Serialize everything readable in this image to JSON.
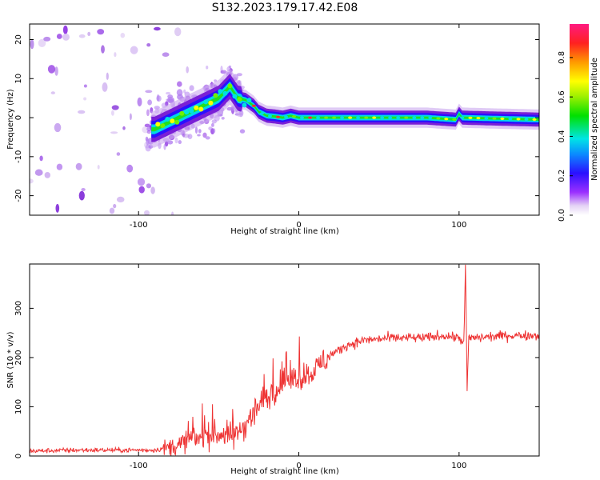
{
  "title": "S132.2023.179.17.42.E08",
  "chart_data": [
    {
      "type": "heatmap",
      "xlabel": "Height of straight line (km)",
      "ylabel": "Frequency (Hz)",
      "xlim": [
        -168,
        150
      ],
      "ylim": [
        -25,
        24
      ],
      "xticks": [
        -100,
        0,
        100
      ],
      "yticks": [
        -20,
        -10,
        0,
        10,
        20
      ],
      "colorbar": {
        "label": "Normalized spectral amplitude",
        "range": [
          0,
          0.97
        ],
        "ticks": [
          "0.0",
          "0.2",
          "0.4",
          "0.6",
          "0.8"
        ]
      },
      "ridge": {
        "x": [
          -90,
          -80,
          -70,
          -60,
          -50,
          -43,
          -38,
          -33,
          -28,
          -25,
          -20,
          -15,
          -10,
          -5,
          0,
          10,
          30,
          50,
          80,
          98,
          100,
          102,
          120,
          150
        ],
        "y": [
          -3,
          -1,
          1,
          3,
          5,
          8,
          5,
          4.5,
          3,
          1.5,
          0.5,
          0.3,
          0,
          0.5,
          0,
          0,
          0,
          0,
          0,
          -0.5,
          1,
          0,
          -0.2,
          -0.5
        ]
      }
    },
    {
      "type": "line",
      "xlabel": "Height of straight line (km)",
      "ylabel": "SNR (10 * v/v)",
      "xlim": [
        -168,
        150
      ],
      "ylim": [
        0,
        390
      ],
      "xticks": [
        -100,
        0,
        100
      ],
      "yticks": [
        0,
        100,
        200,
        300
      ],
      "color": "#ee3333",
      "x": [
        -168,
        -140,
        -110,
        -90,
        -80,
        -70,
        -60,
        -50,
        -40,
        -30,
        -20,
        -10,
        0,
        10,
        20,
        30,
        40,
        60,
        80,
        90,
        100,
        103,
        104,
        105,
        106,
        110,
        130,
        150
      ],
      "y": [
        10,
        12,
        12,
        12,
        18,
        30,
        40,
        45,
        40,
        80,
        120,
        150,
        160,
        175,
        205,
        225,
        235,
        240,
        240,
        245,
        240,
        230,
        390,
        130,
        240,
        240,
        245,
        245
      ]
    }
  ]
}
